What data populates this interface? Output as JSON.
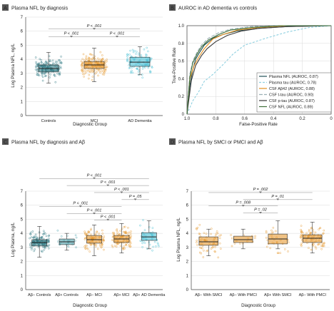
{
  "colors": {
    "teal_dark": "#1f6f7a",
    "teal": "#3f9aa6",
    "orange": "#e3901f",
    "cyan": "#35b8cf",
    "gray": "#7f7f7f",
    "gridline": "#d9d9d9",
    "axis": "#444444",
    "label_box": "#555555"
  },
  "chart_data": [
    {
      "panel": "A",
      "title": "Plasma NFL by diagnosis",
      "type": "boxplot",
      "xlabel": "Diagnostic Group",
      "ylabel": "Log Plasma NFL, ng/L",
      "ylim": [
        0,
        7
      ],
      "yticks": [
        "0",
        "1",
        "2",
        "3",
        "4",
        "5",
        "6",
        "7"
      ],
      "categories": [
        "Controls",
        "MCI",
        "AD Dementia"
      ],
      "box_colors": [
        "teal_dark",
        "orange",
        "cyan"
      ],
      "boxes": [
        {
          "q1": 3.1,
          "median": 3.35,
          "q3": 3.6,
          "min": 2.3,
          "max": 4.5
        },
        {
          "q1": 3.35,
          "median": 3.6,
          "q3": 3.85,
          "min": 2.4,
          "max": 4.8
        },
        {
          "q1": 3.5,
          "median": 3.8,
          "q3": 4.15,
          "min": 2.9,
          "max": 4.9
        }
      ],
      "comparisons": [
        {
          "from": 0,
          "to": 2,
          "label": "P < .001",
          "y": 6.15
        },
        {
          "from": 0,
          "to": 1,
          "label": "P < .001",
          "y": 5.6
        },
        {
          "from": 1,
          "to": 2,
          "label": "P < .001",
          "y": 5.6
        }
      ]
    },
    {
      "panel": "B",
      "title": "AUROC in AD dementia vs controls",
      "type": "line",
      "xlabel": "False-Positive Rate",
      "ylabel": "True-Positive Rate",
      "xticks": [
        "1.0",
        "0.8",
        "0.6",
        "0.4",
        "0.2",
        "0"
      ],
      "yticks": [
        "0",
        "0.2",
        "0.4",
        "0.6",
        "0.8",
        "1.0"
      ],
      "series": [
        {
          "name": "Plasma NFL (AUROC, 0.87)",
          "color": "#1f4f57",
          "dash": "none",
          "x": [
            0,
            0.02,
            0.04,
            0.06,
            0.08,
            0.12,
            0.18,
            0.25,
            0.35,
            0.5,
            0.7,
            1.0
          ],
          "y": [
            0,
            0.32,
            0.5,
            0.62,
            0.68,
            0.78,
            0.86,
            0.9,
            0.94,
            0.97,
            0.99,
            1.0
          ]
        },
        {
          "name": "Plasma tau (AUROC, 0.78)",
          "color": "#8fd0e0",
          "dash": "3,2",
          "x": [
            0,
            0.04,
            0.08,
            0.12,
            0.18,
            0.25,
            0.32,
            0.4,
            0.55,
            0.7,
            0.85,
            1.0
          ],
          "y": [
            0,
            0.15,
            0.25,
            0.37,
            0.45,
            0.56,
            0.68,
            0.78,
            0.86,
            0.93,
            0.98,
            1.0
          ]
        },
        {
          "name": "CSF Aβ42 (AUROC, 0.88)",
          "color": "#e3901f",
          "dash": "none",
          "x": [
            0,
            0.02,
            0.05,
            0.08,
            0.12,
            0.18,
            0.25,
            0.35,
            0.5,
            0.7,
            1.0
          ],
          "y": [
            0,
            0.4,
            0.55,
            0.64,
            0.74,
            0.85,
            0.9,
            0.95,
            0.98,
            1.0,
            1.0
          ]
        },
        {
          "name": "CSF t-tau (AUROC, 0.90)",
          "color": "#9bb0b5",
          "dash": "5,2",
          "x": [
            0,
            0.02,
            0.04,
            0.07,
            0.1,
            0.15,
            0.22,
            0.3,
            0.45,
            0.65,
            1.0
          ],
          "y": [
            0,
            0.45,
            0.6,
            0.7,
            0.78,
            0.86,
            0.92,
            0.96,
            0.99,
            1.0,
            1.0
          ]
        },
        {
          "name": "CSF p-tau (AUROC, 0.87)",
          "color": "#3a3a3a",
          "dash": "none",
          "x": [
            0,
            0.03,
            0.06,
            0.1,
            0.14,
            0.2,
            0.28,
            0.38,
            0.5,
            0.7,
            1.0
          ],
          "y": [
            0,
            0.38,
            0.55,
            0.66,
            0.74,
            0.82,
            0.89,
            0.94,
            0.97,
            0.99,
            1.0
          ]
        },
        {
          "name": "CSF NFL (AUROC, 0.89)",
          "color": "#3e6f3a",
          "dash": "none",
          "x": [
            0,
            0.02,
            0.04,
            0.07,
            0.1,
            0.15,
            0.22,
            0.3,
            0.45,
            0.65,
            1.0
          ],
          "y": [
            0,
            0.42,
            0.58,
            0.68,
            0.76,
            0.84,
            0.9,
            0.95,
            0.98,
            1.0,
            1.0
          ]
        }
      ]
    },
    {
      "panel": "C",
      "title": "Plasma NFL by diagnosis and Aβ",
      "type": "boxplot",
      "xlabel": "Diagnostic Group",
      "ylabel": "Log Plasma, ng/L",
      "ylim": [
        0,
        7
      ],
      "yticks": [
        "0",
        "1",
        "2",
        "3",
        "4",
        "5",
        "6",
        "7"
      ],
      "categories": [
        "Aβ– Controls",
        "Aβ+ Controls",
        "Aβ– MCI",
        "Aβ+ MCI",
        "Aβ+ AD Dementia"
      ],
      "box_colors": [
        "teal_dark",
        "teal",
        "orange",
        "orange",
        "cyan"
      ],
      "boxes": [
        {
          "q1": 3.1,
          "median": 3.35,
          "q3": 3.55,
          "min": 2.3,
          "max": 4.5
        },
        {
          "q1": 3.2,
          "median": 3.4,
          "q3": 3.6,
          "min": 2.8,
          "max": 4.0
        },
        {
          "q1": 3.3,
          "median": 3.55,
          "q3": 3.85,
          "min": 2.4,
          "max": 4.6
        },
        {
          "q1": 3.35,
          "median": 3.6,
          "q3": 3.85,
          "min": 2.6,
          "max": 4.7
        },
        {
          "q1": 3.5,
          "median": 3.75,
          "q3": 4.05,
          "min": 2.9,
          "max": 4.9
        }
      ],
      "comparisons": [
        {
          "from": 0,
          "to": 4,
          "label": "P < .001",
          "y": 7.9
        },
        {
          "from": 1,
          "to": 4,
          "label": "P < .001",
          "y": 7.4
        },
        {
          "from": 2,
          "to": 4,
          "label": "P < .001",
          "y": 6.9
        },
        {
          "from": 3,
          "to": 4,
          "label": "P = .05",
          "y": 6.4
        },
        {
          "from": 0,
          "to": 3,
          "label": "P < .001",
          "y": 5.9
        },
        {
          "from": 1,
          "to": 3,
          "label": "P < .001",
          "y": 5.4
        },
        {
          "from": 2,
          "to": 3,
          "label": "P < .001",
          "y": 4.95
        }
      ]
    },
    {
      "panel": "D",
      "title": "Plasma NFL by SMCI or PMCI and Aβ",
      "type": "boxplot",
      "xlabel": "Diagnostic Group",
      "ylabel": "Log Plasma NFL, ng/L",
      "ylim": [
        0,
        7
      ],
      "yticks": [
        "0",
        "1",
        "2",
        "3",
        "4",
        "5",
        "6",
        "7"
      ],
      "categories": [
        "Aβ– With SMCI",
        "Aβ– With PMCI",
        "Aβ+ With SMCI",
        "Aβ– With PMCI"
      ],
      "box_colors": [
        "orange",
        "orange",
        "orange",
        "orange"
      ],
      "boxes": [
        {
          "q1": 3.15,
          "median": 3.4,
          "q3": 3.75,
          "min": 2.4,
          "max": 4.3
        },
        {
          "q1": 3.35,
          "median": 3.55,
          "q3": 3.8,
          "min": 2.9,
          "max": 4.3
        },
        {
          "q1": 3.25,
          "median": 3.6,
          "q3": 3.95,
          "min": 2.9,
          "max": 4.9
        },
        {
          "q1": 3.35,
          "median": 3.65,
          "q3": 3.9,
          "min": 2.6,
          "max": 4.8
        }
      ],
      "comparisons": [
        {
          "from": 0,
          "to": 3,
          "label": "P = .002",
          "y": 6.9
        },
        {
          "from": 1,
          "to": 3,
          "label": "P = .01",
          "y": 6.4
        },
        {
          "from": 0,
          "to": 2,
          "label": "P = .008",
          "y": 5.95
        },
        {
          "from": 1,
          "to": 2,
          "label": "P = .02",
          "y": 5.45
        }
      ]
    }
  ]
}
